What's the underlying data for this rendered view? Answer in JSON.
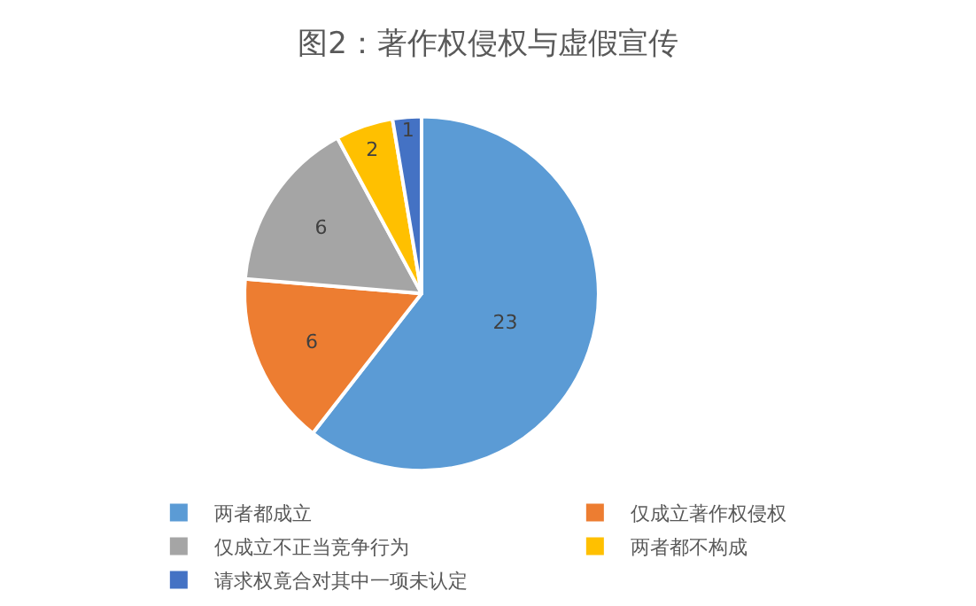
{
  "chart_data": {
    "type": "pie",
    "title": "图2：著作权侵权与虚假宣传",
    "categories": [
      "两者都成立",
      "仅成立著作权侵权",
      "仅成立不正当竞争行为",
      "两者都不构成",
      "请求权竟合对其中一项未认定"
    ],
    "values": [
      23,
      6,
      6,
      2,
      1
    ],
    "colors": [
      "#5b9bd5",
      "#ed7d31",
      "#a5a5a5",
      "#ffc000",
      "#4472c4"
    ],
    "data_labels": true,
    "legend": "bottom"
  }
}
